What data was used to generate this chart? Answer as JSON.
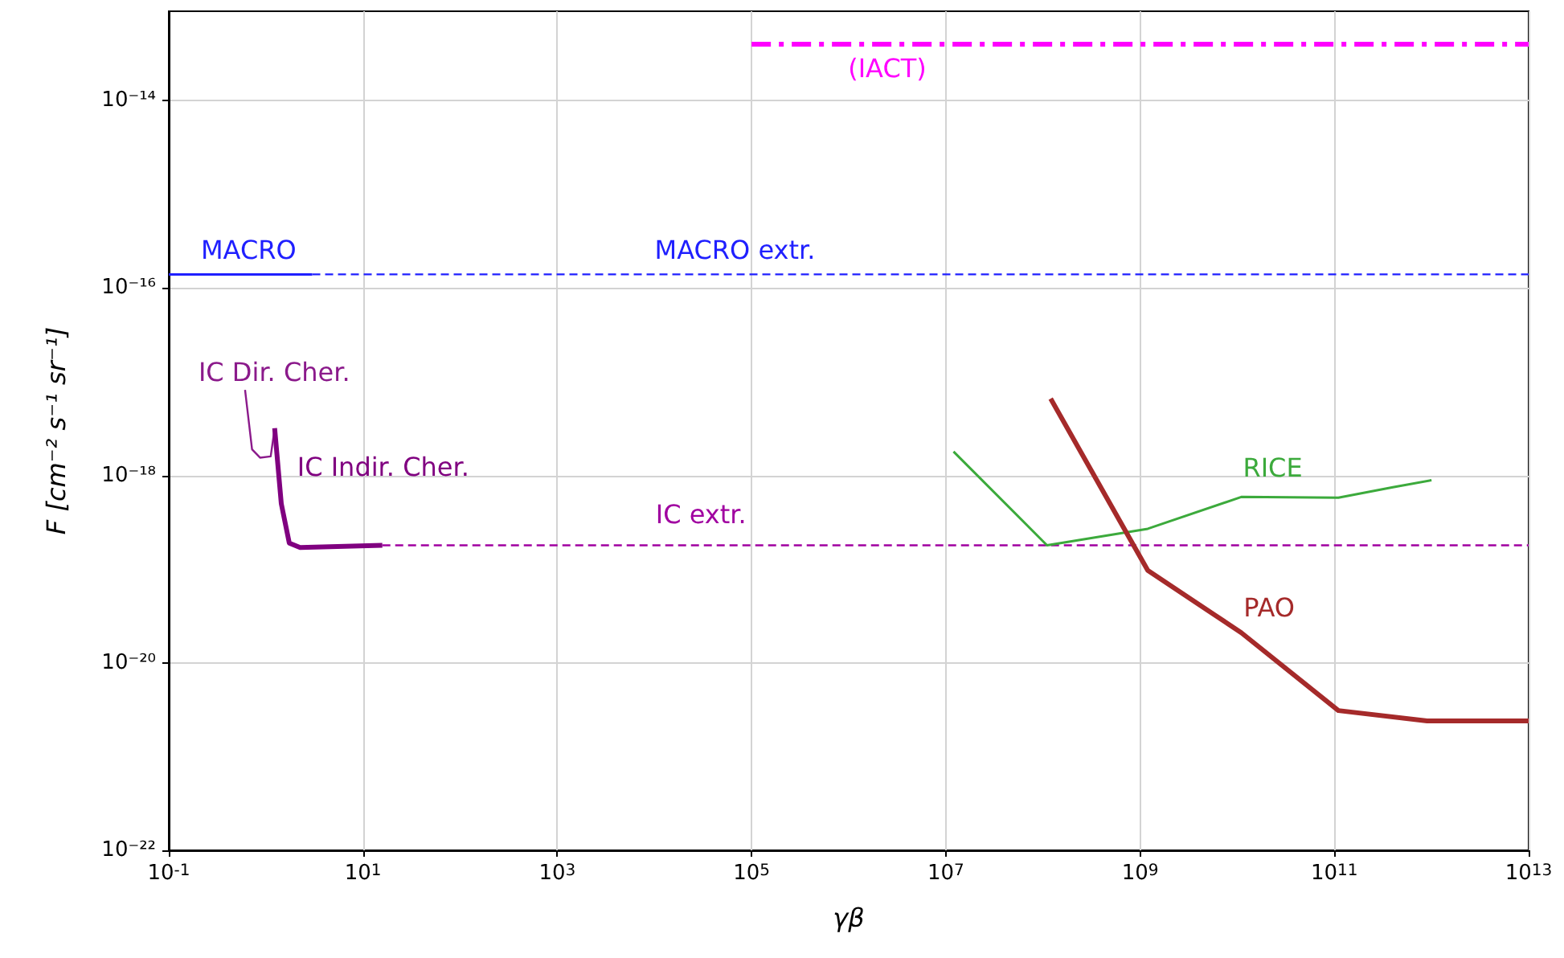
{
  "chart_data": {
    "type": "line",
    "xlabel": "γβ",
    "ylabel": "F [cm⁻² s⁻¹ sr⁻¹]",
    "log": "xy",
    "grid": true,
    "legend": false,
    "xlim": [
      0.1,
      10000000000000.0
    ],
    "ylim": [
      1e-22,
      9e-14
    ],
    "xticks": [
      {
        "value": 0.1,
        "label": "10$^{-1}$"
      },
      {
        "value": 10,
        "label": "10$^{1}$"
      },
      {
        "value": 1000,
        "label": "10$^{3}$"
      },
      {
        "value": 100000.0,
        "label": "10$^{5}$"
      },
      {
        "value": 10000000.0,
        "label": "10$^{7}$"
      },
      {
        "value": 1000000000.0,
        "label": "10$^{9}$"
      },
      {
        "value": 100000000000.0,
        "label": "10$^{11}$"
      },
      {
        "value": 10000000000000.0,
        "label": "10$^{13}$"
      }
    ],
    "yticks": [
      {
        "value": 1e-22,
        "label": "10⁻²²"
      },
      {
        "value": 1e-20,
        "label": "10⁻²⁰"
      },
      {
        "value": 1e-18,
        "label": "10⁻¹⁸"
      },
      {
        "value": 1e-16,
        "label": "10⁻¹⁶"
      },
      {
        "value": 1e-14,
        "label": "10⁻¹⁴"
      }
    ],
    "series": [
      {
        "name": "MACRO",
        "color": "#1f1fff",
        "line_style": "solid",
        "x": [
          0.1,
          3
        ],
        "values": [
          1.4e-16,
          1.4e-16
        ]
      },
      {
        "name": "MACRO extr.",
        "color": "#1f1fff",
        "line_style": "dashed",
        "x": [
          3,
          10000000000000.0
        ],
        "values": [
          1.4e-16,
          1.4e-16
        ]
      },
      {
        "name": "IC Dir. Cher.",
        "color": "#8b1a8b",
        "line_style": "solid",
        "x": [
          0.61,
          0.72,
          0.87,
          1.12,
          1.22
        ],
        "values": [
          8.2e-18,
          1.9e-18,
          1.55e-18,
          1.6e-18,
          3e-18
        ]
      },
      {
        "name": "IC Indir. Cher.",
        "color": "#800080",
        "line_style": "solid",
        "x": [
          1.23,
          1.44,
          1.74,
          2.25,
          15.8
        ],
        "values": [
          3.2e-18,
          5e-19,
          1.9e-19,
          1.7e-19,
          1.8e-19
        ]
      },
      {
        "name": "IC extr.",
        "color": "#a000a0",
        "line_style": "dashed",
        "x": [
          15.8,
          10000000000000.0
        ],
        "values": [
          1.8e-19,
          1.8e-19
        ]
      },
      {
        "name": "RICE",
        "color": "#3caa3c",
        "line_style": "solid",
        "x": [
          12000000.0,
          110000000.0,
          1200000000.0,
          11000000000.0,
          110000000000.0,
          400000000000.0,
          1000000000000.0
        ],
        "values": [
          1.8e-18,
          1.8e-19,
          2.7e-19,
          5.9e-19,
          5.8e-19,
          7.5e-19,
          8.9e-19
        ]
      },
      {
        "name": "PAO",
        "color": "#a52a2a",
        "line_style": "solid",
        "x": [
          120000000.0,
          1200000000.0,
          11000000000.0,
          110000000000.0,
          900000000000.0,
          10000000000000.0
        ],
        "values": [
          6.6e-18,
          9.7e-20,
          2.1e-20,
          3.1e-21,
          2.4e-21,
          2.4e-21
        ]
      },
      {
        "name": "(IACT)",
        "color": "#ff00ff",
        "line_style": "dashdot",
        "x": [
          100000.0,
          10000000000000.0
        ],
        "values": [
          4e-14,
          4e-14
        ]
      }
    ]
  }
}
